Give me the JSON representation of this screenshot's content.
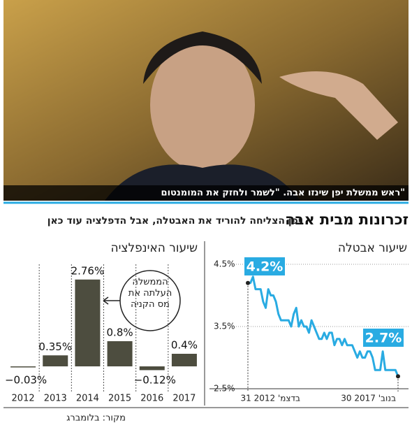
{
  "caption": "ראש ממשלת יפן שינזו אבה. \"לשמר ולחזק את המומנטום\"",
  "title": "זכרונות מבית אבה",
  "subtitle": "יפן הצליחה להוריד את האבטלה, אבל הדפלציה עוד כאן",
  "source": "מקור: בלומברג",
  "chart_data": [
    {
      "type": "line",
      "title": "שיעור אבטלה",
      "color": "#29abe2",
      "x": [
        "2012-12",
        "2013-01",
        "2013-02",
        "2013-03",
        "2013-04",
        "2013-05",
        "2013-06",
        "2013-07",
        "2013-08",
        "2013-09",
        "2013-10",
        "2013-11",
        "2013-12",
        "2014-01",
        "2014-02",
        "2014-03",
        "2014-04",
        "2014-05",
        "2014-06",
        "2014-07",
        "2014-08",
        "2014-09",
        "2014-10",
        "2014-11",
        "2014-12",
        "2015-01",
        "2015-02",
        "2015-03",
        "2015-04",
        "2015-05",
        "2015-06",
        "2015-07",
        "2015-08",
        "2015-09",
        "2015-10",
        "2015-11",
        "2015-12",
        "2016-01",
        "2016-02",
        "2016-03",
        "2016-04",
        "2016-05",
        "2016-06",
        "2016-07",
        "2016-08",
        "2016-09",
        "2016-10",
        "2016-11",
        "2016-12",
        "2017-01",
        "2017-02",
        "2017-03",
        "2017-04",
        "2017-05",
        "2017-06",
        "2017-07",
        "2017-08",
        "2017-09",
        "2017-10",
        "2017-11"
      ],
      "values": [
        4.2,
        4.2,
        4.3,
        4.1,
        4.1,
        4.1,
        3.9,
        3.8,
        4.1,
        4.0,
        4.0,
        3.9,
        3.7,
        3.6,
        3.6,
        3.6,
        3.6,
        3.5,
        3.7,
        3.8,
        3.5,
        3.6,
        3.5,
        3.5,
        3.4,
        3.6,
        3.5,
        3.4,
        3.3,
        3.3,
        3.4,
        3.3,
        3.4,
        3.4,
        3.2,
        3.3,
        3.3,
        3.2,
        3.3,
        3.2,
        3.2,
        3.2,
        3.1,
        3.0,
        3.1,
        3.0,
        3.0,
        3.1,
        3.1,
        3.0,
        2.8,
        2.8,
        2.8,
        3.1,
        2.8,
        2.8,
        2.8,
        2.8,
        2.8,
        2.7
      ],
      "value_labels": [
        "4.2%",
        null,
        null,
        null,
        null,
        null,
        null,
        null,
        null,
        null,
        null,
        null,
        null,
        null,
        null,
        null,
        null,
        null,
        null,
        null,
        null,
        null,
        null,
        null,
        null,
        null,
        null,
        null,
        null,
        null,
        null,
        null,
        null,
        null,
        null,
        null,
        null,
        null,
        null,
        null,
        null,
        null,
        null,
        null,
        null,
        null,
        null,
        null,
        null,
        null,
        null,
        null,
        null,
        null,
        null,
        null,
        null,
        null,
        null,
        "2.7%"
      ],
      "xticks": [
        {
          "value": "2012-12",
          "label": "31 בדצמ' 2012"
        },
        {
          "value": "2017-11",
          "label": "30 בנוב' 2017"
        }
      ],
      "ylim": [
        2.5,
        4.5
      ],
      "yticks": [
        {
          "value": 4.5,
          "label": "4.5%"
        },
        {
          "value": 3.5,
          "label": "3.5%"
        },
        {
          "value": 2.5,
          "label": "2.5%"
        }
      ]
    },
    {
      "type": "bar",
      "title": "שיעור האינפלציה",
      "color": "#4d4d3f",
      "categories": [
        "2012",
        "2013",
        "2014",
        "2015",
        "2016",
        "2017"
      ],
      "values": [
        -0.03,
        0.35,
        2.76,
        0.8,
        -0.12,
        0.4
      ],
      "value_labels": [
        "−0.03%",
        "0.35%",
        "2.76%",
        "0.8%",
        "−0.12%",
        "0.4%"
      ],
      "annotation": "הממשלה העלתה את מס הקניה"
    }
  ]
}
